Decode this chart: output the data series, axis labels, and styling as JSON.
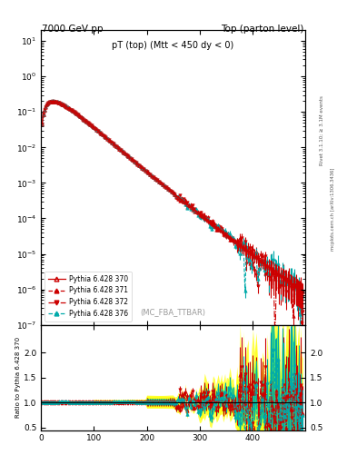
{
  "title_left": "7000 GeV pp",
  "title_right": "Top (parton level)",
  "main_title": "pT (top) (Mtt < 450 dy < 0)",
  "watermark": "(MC_FBA_TTBAR)",
  "right_label1": "Rivet 3.1.10; ≥ 3.1M events",
  "right_label2": "mcplots.cern.ch [arXiv:1306.3436]",
  "ylabel_ratio": "Ratio to Pythia 6.428 370",
  "xlim": [
    0,
    500
  ],
  "ylim_main": [
    1e-07,
    20
  ],
  "ylim_ratio": [
    0.45,
    2.55
  ],
  "ratio_yticks": [
    0.5,
    1.0,
    1.5,
    2.0
  ],
  "xticks": [
    0,
    100,
    200,
    300,
    400
  ],
  "series": [
    {
      "label": "Pythia 6.428 370",
      "color": "#cc0000",
      "linestyle": "-",
      "marker": "^",
      "markersize": 2.5,
      "linewidth": 0.8,
      "filled": false
    },
    {
      "label": "Pythia 6.428 371",
      "color": "#cc0000",
      "linestyle": "--",
      "marker": "^",
      "markersize": 2.5,
      "linewidth": 0.8,
      "filled": true
    },
    {
      "label": "Pythia 6.428 372",
      "color": "#cc0000",
      "linestyle": "-.",
      "marker": "v",
      "markersize": 2.5,
      "linewidth": 0.8,
      "filled": true
    },
    {
      "label": "Pythia 6.428 376",
      "color": "#00aaaa",
      "linestyle": "--",
      "marker": "^",
      "markersize": 2.5,
      "linewidth": 0.8,
      "filled": true
    }
  ],
  "band_yellow": "#ffff00",
  "band_green": "#00ee88",
  "bg_color": "#ffffff"
}
